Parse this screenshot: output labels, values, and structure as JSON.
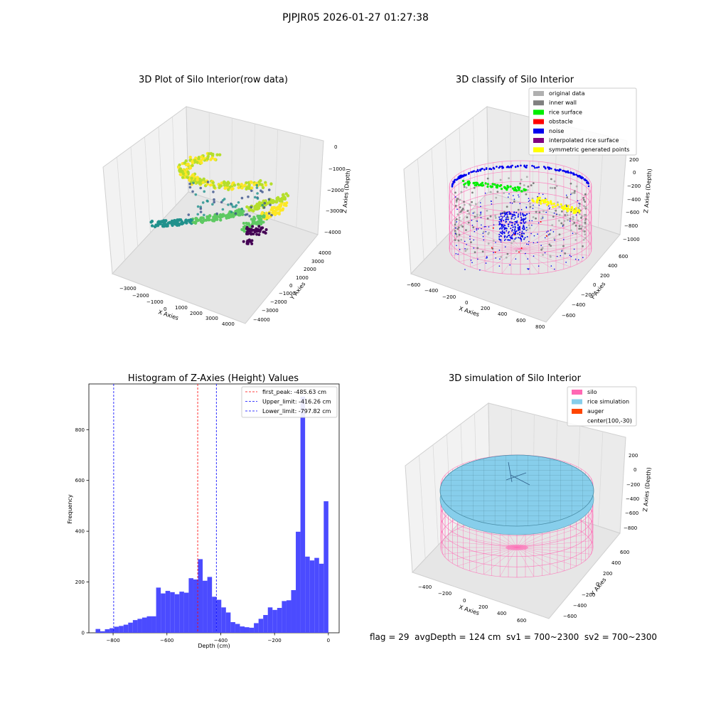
{
  "suptitle": "PJPJR05 2026-01-27 01:27:38",
  "bottom_text": "flag = 29  avgDepth = 124 cm  sv1 = 700~2300  sv2 = 700~2300",
  "panels": {
    "raw": {
      "title": "3D Plot of Silo Interior(row data)",
      "xlabel": "X Axies",
      "ylabel": "Y Axies",
      "zlabel": "Z Axies (Depth)",
      "xticks": [
        "−3000",
        "−2000",
        "−1000",
        "0",
        "1000",
        "2000",
        "3000",
        "4000"
      ],
      "yticks": [
        "4000",
        "3000",
        "2000",
        "1000",
        "0",
        "−1000",
        "−2000",
        "−3000",
        "−4000"
      ],
      "zticks": [
        "0",
        "−1000",
        "−2000",
        "−3000",
        "−4000"
      ]
    },
    "classify": {
      "title": "3D classify of Silo Interior",
      "xlabel": "X Axies",
      "ylabel": "Y Axies",
      "zlabel": "Z Axies (Depth)",
      "xticks": [
        "−600",
        "−400",
        "−200",
        "0",
        "200",
        "400",
        "600",
        "800"
      ],
      "yticks": [
        "600",
        "400",
        "200",
        "0",
        "−200",
        "−400",
        "−600"
      ],
      "zticks": [
        "200",
        "0",
        "−200",
        "−400",
        "−600",
        "−800",
        "−1000"
      ],
      "legend": [
        {
          "label": "original data",
          "color": "#b0b0b0"
        },
        {
          "label": "inner wall",
          "color": "#808080"
        },
        {
          "label": "rice surface",
          "color": "#00ee00"
        },
        {
          "label": "obstacle",
          "color": "#ff0000"
        },
        {
          "label": "noise",
          "color": "#0000ee"
        },
        {
          "label": "interpolated rice surface",
          "color": "#800080"
        },
        {
          "label": "symmetric generated points",
          "color": "#ffff00"
        }
      ]
    },
    "simulation": {
      "title": "3D simulation of Silo Interior",
      "xlabel": "X Axies",
      "ylabel": "Y Axies",
      "zlabel": "Z Axies (Depth)",
      "xticks": [
        "−400",
        "−200",
        "0",
        "200",
        "400",
        "600"
      ],
      "yticks": [
        "600",
        "400",
        "200",
        "0",
        "−200",
        "−400",
        "−600"
      ],
      "zticks": [
        "200",
        "0",
        "−200",
        "−400",
        "−600",
        "−800"
      ],
      "legend": [
        {
          "label": "silo",
          "color": "#ff69b4"
        },
        {
          "label": "rice simulation",
          "color": "#87ceeb"
        },
        {
          "label": "auger",
          "color": "#ff4500"
        },
        {
          "label": "center(100,-30)",
          "color": ""
        }
      ]
    }
  },
  "chart_data": {
    "type": "bar",
    "title": "Histogram of Z-Axies (Height) Values",
    "xlabel": "Depth (cm)",
    "ylabel": "Frequency",
    "xlim": [
      -890,
      40
    ],
    "ylim": [
      0,
      980
    ],
    "xticks": [
      -800,
      -600,
      -400,
      -200,
      0
    ],
    "yticks": [
      0,
      200,
      400,
      600,
      800
    ],
    "bar_color": "#4b4bff",
    "bin_width": 17.3,
    "bin_start": -865,
    "values": [
      15,
      6,
      14,
      18,
      24,
      27,
      32,
      40,
      50,
      55,
      60,
      65,
      65,
      178,
      155,
      165,
      160,
      152,
      162,
      158,
      215,
      210,
      290,
      205,
      220,
      142,
      130,
      100,
      80,
      42,
      35,
      25,
      22,
      20,
      38,
      55,
      70,
      100,
      90,
      98,
      125,
      128,
      168,
      398,
      930,
      300,
      285,
      295,
      272,
      518
    ],
    "vlines": [
      {
        "label": "first_peak: -485.63 cm",
        "x": -485.63,
        "color": "#ff0000"
      },
      {
        "label": "Upper_limit: -416.26 cm",
        "x": -416.26,
        "color": "#0000ff"
      },
      {
        "label": "Lower_limit: -797.82 cm",
        "x": -797.82,
        "color": "#0000ff"
      }
    ],
    "legend_position": "top-right"
  }
}
